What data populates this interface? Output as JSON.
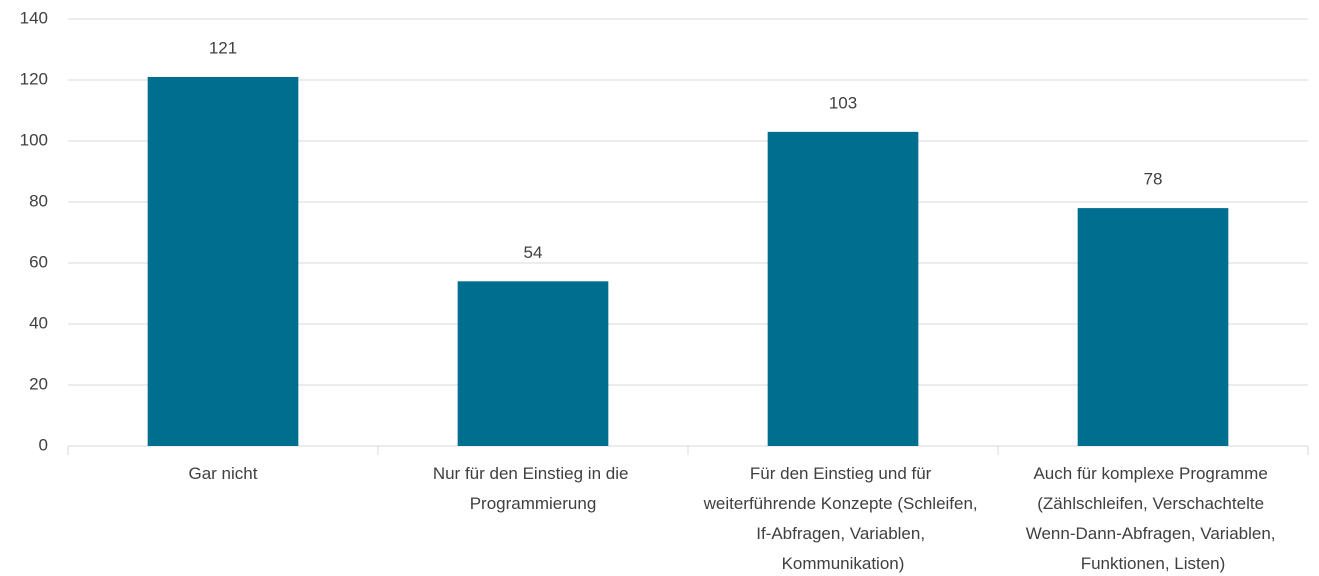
{
  "chart_data": {
    "type": "bar",
    "categories": [
      "Gar nicht",
      "Nur für den Einstieg in die Programmierung",
      "Für den Einstieg und für weiterführende Konzepte (Schleifen, If-Abfragen, Variablen, Kommunikation)",
      "Auch für komplexe Programme (Zählschleifen, Verschachtelte Wenn-Dann-Abfragen, Variablen, Funktionen, Listen)"
    ],
    "values": [
      121,
      54,
      103,
      78
    ],
    "color": "#006f8f",
    "ylim": [
      0,
      140
    ],
    "yticks": [
      0,
      20,
      40,
      60,
      80,
      100,
      120,
      140
    ],
    "grid": true
  }
}
